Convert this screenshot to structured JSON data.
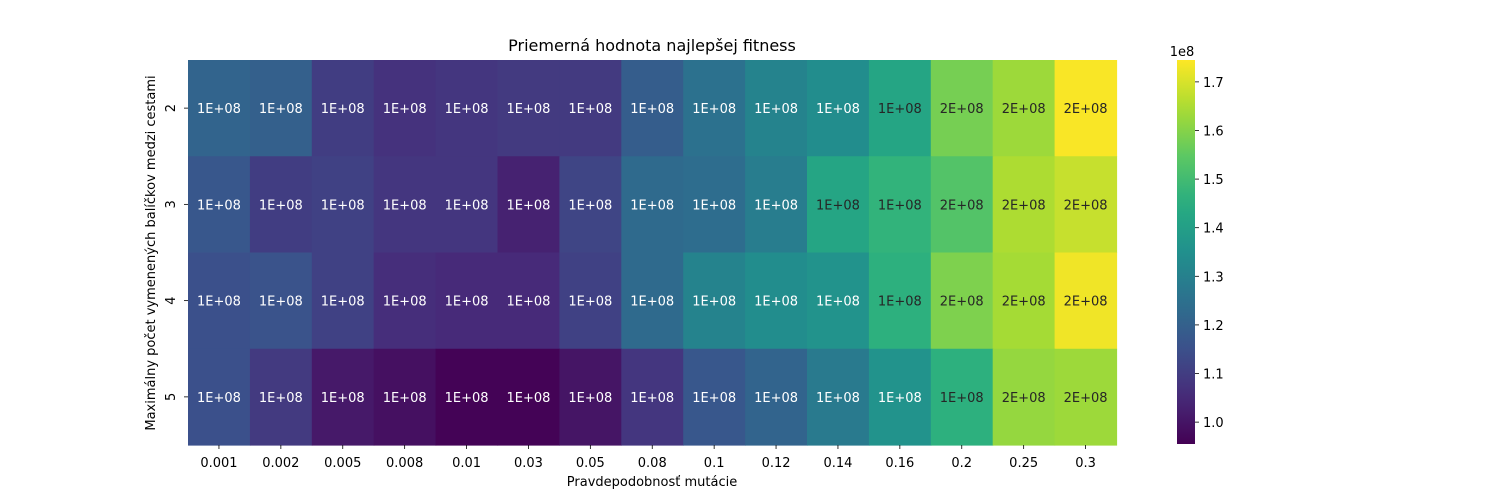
{
  "chart_data": {
    "type": "heatmap",
    "title": "Priemerná hodnota najlepšej fitness",
    "xlabel": "Pravdepodobnosť mutácie",
    "ylabel": "Maximálny počet vymenených balíčkov medzi cestami",
    "x_categories": [
      "0.001",
      "0.002",
      "0.005",
      "0.008",
      "0.01",
      "0.03",
      "0.05",
      "0.08",
      "0.1",
      "0.12",
      "0.14",
      "0.16",
      "0.2",
      "0.25",
      "0.3"
    ],
    "y_categories": [
      "2",
      "3",
      "4",
      "5"
    ],
    "values": [
      [
        121000000.0,
        120000000.0,
        110000000.0,
        107000000.0,
        108000000.0,
        109000000.0,
        109000000.0,
        119000000.0,
        125000000.0,
        131000000.0,
        134000000.0,
        142000000.0,
        158000000.0,
        163000000.0,
        174000000.0
      ],
      [
        117000000.0,
        110000000.0,
        111000000.0,
        108000000.0,
        108000000.0,
        103000000.0,
        112000000.0,
        123000000.0,
        124000000.0,
        129000000.0,
        142000000.0,
        147000000.0,
        153000000.0,
        165000000.0,
        168000000.0
      ],
      [
        115000000.0,
        116000000.0,
        111000000.0,
        106000000.0,
        105000000.0,
        105000000.0,
        111000000.0,
        123000000.0,
        131000000.0,
        134000000.0,
        136000000.0,
        146000000.0,
        159000000.0,
        164000000.0,
        173000000.0
      ],
      [
        115000000.0,
        109000000.0,
        101000000.0,
        99000000.0,
        96000000.0,
        96000000.0,
        100000000.0,
        108000000.0,
        117000000.0,
        121000000.0,
        128000000.0,
        136000000.0,
        146000000.0,
        162000000.0,
        163000000.0
      ]
    ],
    "cell_labels": [
      [
        "1E+08",
        "1E+08",
        "1E+08",
        "1E+08",
        "1E+08",
        "1E+08",
        "1E+08",
        "1E+08",
        "1E+08",
        "1E+08",
        "1E+08",
        "1E+08",
        "2E+08",
        "2E+08",
        "2E+08"
      ],
      [
        "1E+08",
        "1E+08",
        "1E+08",
        "1E+08",
        "1E+08",
        "1E+08",
        "1E+08",
        "1E+08",
        "1E+08",
        "1E+08",
        "1E+08",
        "1E+08",
        "2E+08",
        "2E+08",
        "2E+08"
      ],
      [
        "1E+08",
        "1E+08",
        "1E+08",
        "1E+08",
        "1E+08",
        "1E+08",
        "1E+08",
        "1E+08",
        "1E+08",
        "1E+08",
        "1E+08",
        "1E+08",
        "2E+08",
        "2E+08",
        "2E+08"
      ],
      [
        "1E+08",
        "1E+08",
        "1E+08",
        "1E+08",
        "1E+08",
        "1E+08",
        "1E+08",
        "1E+08",
        "1E+08",
        "1E+08",
        "1E+08",
        "1E+08",
        "1E+08",
        "2E+08",
        "2E+08"
      ]
    ],
    "colormap": "viridis",
    "color_range": [
      95500000.0,
      174500000.0
    ],
    "colorbar": {
      "ticks": [
        1.0,
        1.1,
        1.2,
        1.3,
        1.4,
        1.5,
        1.6,
        1.7
      ],
      "tick_labels": [
        "1.0",
        "1.1",
        "1.2",
        "1.3",
        "1.4",
        "1.5",
        "1.6",
        "1.7"
      ],
      "multiplier_label": "1e8",
      "placement": "right"
    }
  }
}
